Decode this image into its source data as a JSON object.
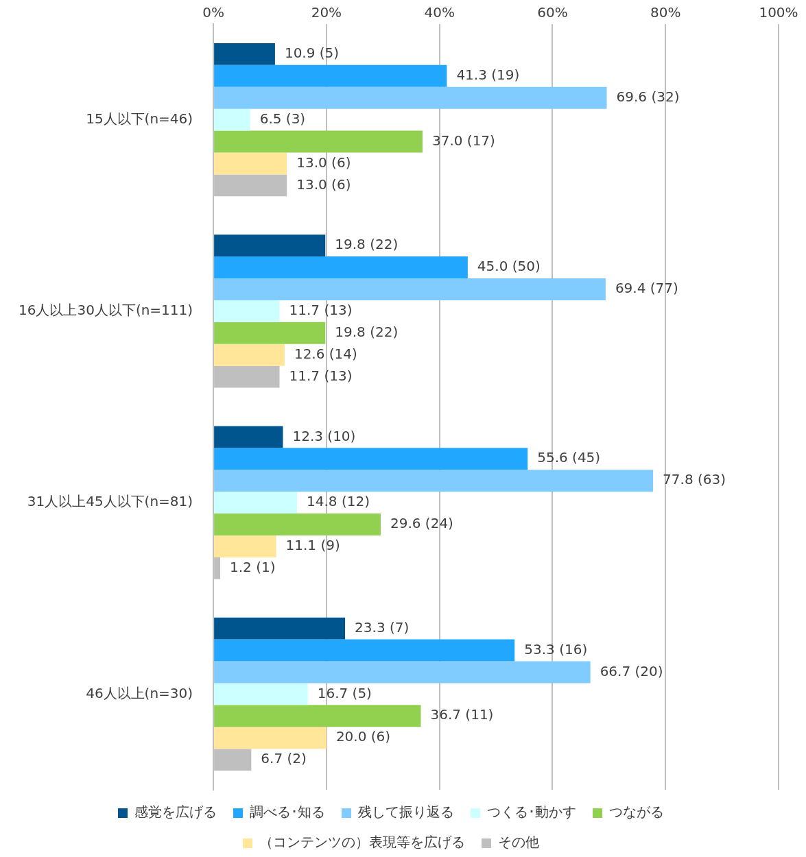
{
  "chart_data": {
    "type": "bar",
    "orientation": "horizontal",
    "categories": [
      "15人以下(n=46)",
      "16人以上30人以下(n=111)",
      "31人以上45人以下(n=81)",
      "46人以上(n=30)"
    ],
    "series": [
      {
        "name": "感覚を広げる",
        "color": "#00558f",
        "values": [
          10.9,
          19.8,
          12.3,
          23.3
        ],
        "value_labels": [
          "10.9 (5)",
          "19.8 (22)",
          "12.3 (10)",
          "23.3 (7)"
        ]
      },
      {
        "name": "調べる･知る",
        "color": "#22a7ff",
        "values": [
          41.3,
          45.0,
          55.6,
          53.3
        ],
        "value_labels": [
          "41.3 (19)",
          "45.0 (50)",
          "55.6 (45)",
          "53.3 (16)"
        ]
      },
      {
        "name": "残して振り返る",
        "color": "#80cbff",
        "values": [
          69.6,
          69.4,
          77.8,
          66.7
        ],
        "value_labels": [
          "69.6 (32)",
          "69.4 (77)",
          "77.8 (63)",
          "66.7 (20)"
        ]
      },
      {
        "name": "つくる･動かす",
        "color": "#ccffff",
        "values": [
          6.5,
          11.7,
          14.8,
          16.7
        ],
        "value_labels": [
          "6.5 (3)",
          "11.7 (13)",
          "14.8 (12)",
          "16.7 (5)"
        ]
      },
      {
        "name": "つながる",
        "color": "#92d050",
        "values": [
          37.0,
          19.8,
          29.6,
          36.7
        ],
        "value_labels": [
          "37.0 (17)",
          "19.8 (22)",
          "29.6 (24)",
          "36.7 (11)"
        ]
      },
      {
        "name": "（コンテンツの）表現等を広げる",
        "color": "#ffe699",
        "values": [
          13.0,
          12.6,
          11.1,
          20.0
        ],
        "value_labels": [
          "13.0 (6)",
          "12.6 (14)",
          "11.1 (9)",
          "20.0 (6)"
        ]
      },
      {
        "name": "その他",
        "color": "#bfbfbf",
        "values": [
          13.0,
          11.7,
          1.2,
          6.7
        ],
        "value_labels": [
          "13.0 (6)",
          "11.7 (13)",
          "1.2 (1)",
          "6.7 (2)"
        ]
      }
    ],
    "xlim": [
      0,
      100
    ],
    "xticks": [
      {
        "value": 0,
        "label": "0%"
      },
      {
        "value": 20,
        "label": "20%"
      },
      {
        "value": 40,
        "label": "40%"
      },
      {
        "value": 60,
        "label": "60%"
      },
      {
        "value": 80,
        "label": "80%"
      },
      {
        "value": 100,
        "label": "100%"
      }
    ],
    "grid": "x",
    "legend": "bottom"
  }
}
